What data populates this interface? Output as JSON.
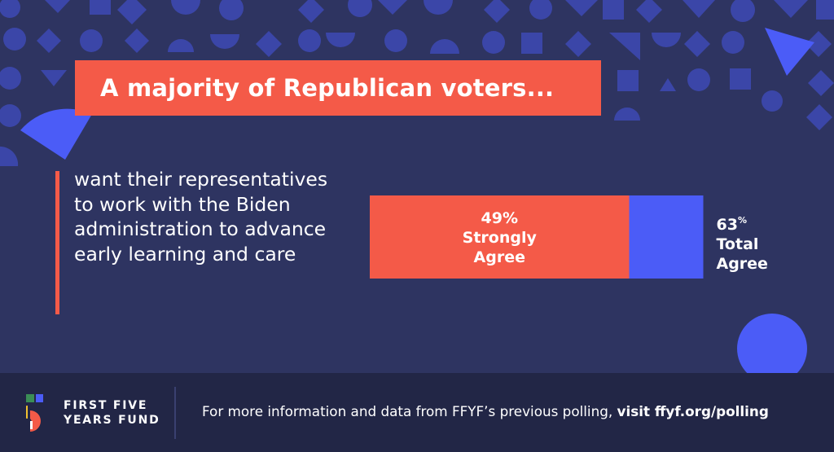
{
  "header": {
    "title": "A majority of Republican voters..."
  },
  "description": "want their representatives to work with the Biden administration to advance early learning and care",
  "chart_data": {
    "type": "bar",
    "orientation": "horizontal-stacked",
    "max": 100,
    "segments": [
      {
        "value": 49,
        "value_label": "49%",
        "label": "Strongly Agree",
        "color": "#f45a48"
      },
      {
        "value": 14,
        "color": "#4b5cf7"
      }
    ],
    "total": {
      "value": 63,
      "number": "63",
      "percent_sign": "%",
      "label": "Total Agree"
    }
  },
  "footer": {
    "org_name": "FIRST FIVE YEARS FUND",
    "text": "For more information and data from FFYF’s previous polling,",
    "link_text": "visit ffyf.org/polling"
  },
  "colors": {
    "background": "#2e3461",
    "footer_bg": "#222646",
    "accent_red": "#f45a48",
    "accent_blue": "#4b5cf7",
    "shape_blue": "#3b46a8"
  }
}
